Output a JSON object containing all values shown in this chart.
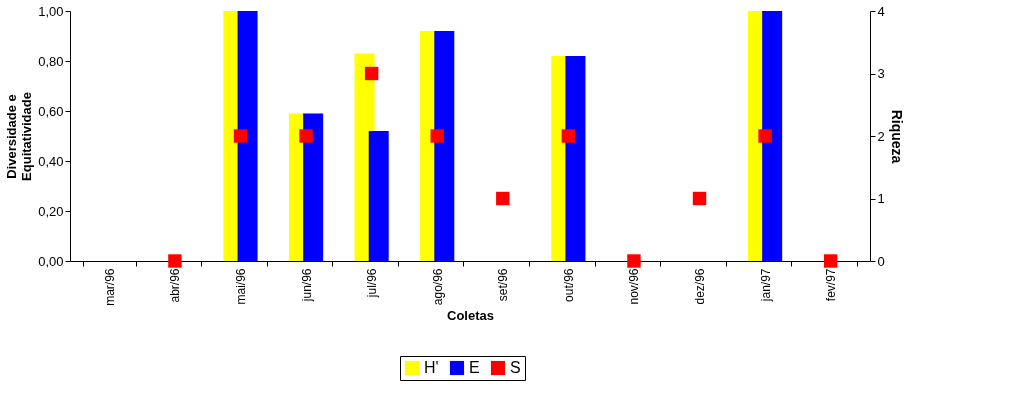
{
  "chart_data": {
    "type": "bar",
    "xlabel": "Coletas",
    "ylabel": "Diversidade e\nEquitatividade",
    "y2label": "Riqueza",
    "categories": [
      "mar/96",
      "abr/96",
      "mai/96",
      "jun/96",
      "jul/96",
      "ago/96",
      "set/96",
      "out/96",
      "nov/96",
      "dez/96",
      "jan/97",
      "fev/97"
    ],
    "series": [
      {
        "name": "H'",
        "color": "#ffff00",
        "values": [
          null,
          null,
          1.0,
          0.59,
          0.83,
          0.92,
          null,
          0.82,
          null,
          null,
          1.0,
          null
        ]
      },
      {
        "name": "E",
        "color": "#0000ff",
        "values": [
          null,
          null,
          1.0,
          0.59,
          0.52,
          0.92,
          null,
          0.82,
          null,
          null,
          1.0,
          null
        ]
      },
      {
        "name": "S",
        "type": "scatter",
        "axis": "y2",
        "color": "#ff0000",
        "values": [
          null,
          0,
          2,
          2,
          3,
          2,
          1,
          2,
          0,
          1,
          2,
          0
        ]
      }
    ],
    "ylim": [
      0,
      1
    ],
    "yticks": [
      {
        "value": 0,
        "label": "0,00"
      },
      {
        "value": 0.2,
        "label": "0,20"
      },
      {
        "value": 0.4,
        "label": "0,40"
      },
      {
        "value": 0.6,
        "label": "0,60"
      },
      {
        "value": 0.8,
        "label": "0,80"
      },
      {
        "value": 1,
        "label": "1,00"
      }
    ],
    "y2lim": [
      0,
      4
    ],
    "y2ticks": [
      0,
      1,
      2,
      3,
      4
    ],
    "marker": "square",
    "legend": "bottom",
    "grid": false
  }
}
